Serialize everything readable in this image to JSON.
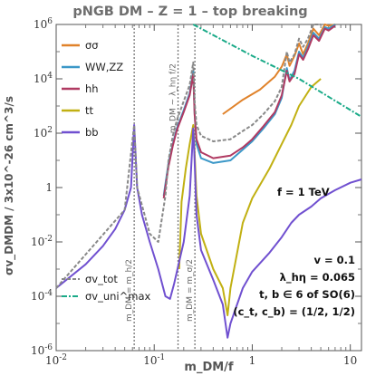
{
  "chart_data": {
    "type": "line",
    "title": "pNGB DM  –  Z = 1  –  top breaking",
    "xlabel": "m_DM/f",
    "ylabel": "σv_DMDM / 3x10^-26 cm^3/s",
    "xscale": "log",
    "yscale": "log",
    "xlim": [
      0.01,
      13
    ],
    "ylim": [
      1e-06,
      1000000
    ],
    "x_ticks": [
      "10^-2",
      "10^-1",
      "1",
      "10"
    ],
    "y_ticks": [
      "10^-6",
      "10^-4",
      "10^-2",
      "1",
      "10^2",
      "10^4",
      "10^6"
    ],
    "legend": {
      "position": "upper-left",
      "entries": [
        {
          "label": "σσ",
          "color": "#e0822a"
        },
        {
          "label": "WW,ZZ",
          "color": "#3c98c8"
        },
        {
          "label": "hh",
          "color": "#b03a62"
        },
        {
          "label": "tt",
          "color": "#c1b012"
        },
        {
          "label": "bb",
          "color": "#7050d0"
        }
      ]
    },
    "legend2": {
      "position": "lower-left",
      "entries": [
        {
          "label": "σv_tot",
          "color": "#888888",
          "style": "dashed"
        },
        {
          "label": "σv_uni^max",
          "color": "#1aaa88",
          "style": "dash-dot"
        }
      ]
    },
    "vertical_lines": [
      {
        "x": 0.0625,
        "label": "m_DM = m_h/2"
      },
      {
        "x": 0.175,
        "label": "m_DM ~ λ_hη f/2"
      },
      {
        "x": 0.26,
        "label": "m_DM = m_σ/2"
      }
    ],
    "annotations": {
      "f_label": "f = 1 TeV",
      "params": [
        "v = 0.1",
        "λ_hη = 0.065",
        "t, b ∈ 6 of SO(6)",
        "(c_t, c_b) = (1/2, 1/2)"
      ]
    },
    "series": [
      {
        "name": "σσ",
        "color": "#e0822a",
        "points": [
          [
            0.5,
            500
          ],
          [
            0.8,
            1700
          ],
          [
            1.2,
            4000
          ],
          [
            1.7,
            12000
          ],
          [
            2.0,
            28000
          ],
          [
            2.25,
            80000
          ],
          [
            2.4,
            30000
          ],
          [
            2.7,
            70000
          ],
          [
            3.0,
            200000
          ],
          [
            3.3,
            80000
          ],
          [
            3.7,
            200000
          ],
          [
            4.2,
            700000
          ],
          [
            4.8,
            400000
          ],
          [
            5.5,
            1000000
          ],
          [
            6,
            900000
          ],
          [
            7,
            1000000
          ]
        ]
      },
      {
        "name": "WW,ZZ",
        "color": "#3c98c8",
        "points": [
          [
            0.125,
            0.5
          ],
          [
            0.14,
            8
          ],
          [
            0.155,
            40
          ],
          [
            0.17,
            150
          ],
          [
            0.2,
            700
          ],
          [
            0.23,
            3000
          ],
          [
            0.25,
            20000
          ],
          [
            0.258,
            600
          ],
          [
            0.27,
            40
          ],
          [
            0.3,
            12
          ],
          [
            0.4,
            8
          ],
          [
            0.6,
            10
          ],
          [
            0.8,
            25
          ],
          [
            1,
            50
          ],
          [
            1.3,
            150
          ],
          [
            1.7,
            500
          ],
          [
            2.0,
            2000
          ],
          [
            2.25,
            25000
          ],
          [
            2.4,
            9000
          ],
          [
            2.7,
            20000
          ],
          [
            3.0,
            100000
          ],
          [
            3.3,
            60000
          ],
          [
            3.7,
            150000
          ],
          [
            4.2,
            500000
          ],
          [
            4.8,
            300000
          ],
          [
            5.5,
            800000
          ],
          [
            6,
            700000
          ],
          [
            7,
            1000000
          ]
        ]
      },
      {
        "name": "hh",
        "color": "#b03a62",
        "points": [
          [
            0.125,
            0.4
          ],
          [
            0.14,
            6
          ],
          [
            0.155,
            35
          ],
          [
            0.17,
            130
          ],
          [
            0.2,
            600
          ],
          [
            0.23,
            2500
          ],
          [
            0.25,
            15000
          ],
          [
            0.258,
            500
          ],
          [
            0.27,
            60
          ],
          [
            0.3,
            20
          ],
          [
            0.4,
            12
          ],
          [
            0.6,
            15
          ],
          [
            0.8,
            30
          ],
          [
            1,
            60
          ],
          [
            1.3,
            180
          ],
          [
            1.7,
            600
          ],
          [
            2.0,
            2500
          ],
          [
            2.25,
            20000
          ],
          [
            2.4,
            8000
          ],
          [
            2.7,
            15000
          ],
          [
            3.0,
            80000
          ],
          [
            3.3,
            50000
          ],
          [
            3.7,
            120000
          ],
          [
            4.2,
            400000
          ],
          [
            4.8,
            250000
          ],
          [
            5.5,
            700000
          ],
          [
            6,
            600000
          ],
          [
            7,
            900000
          ]
        ]
      },
      {
        "name": "tt",
        "color": "#c1b012",
        "points": [
          [
            0.18,
            0.001
          ],
          [
            0.19,
            0.3
          ],
          [
            0.21,
            5
          ],
          [
            0.23,
            40
          ],
          [
            0.25,
            200
          ],
          [
            0.258,
            20
          ],
          [
            0.27,
            0.5
          ],
          [
            0.3,
            0.02
          ],
          [
            0.4,
            0.001
          ],
          [
            0.5,
            0.0002
          ],
          [
            0.56,
            2e-05
          ],
          [
            0.6,
            0.0002
          ],
          [
            0.8,
            0.05
          ],
          [
            1,
            0.4
          ],
          [
            1.5,
            5
          ],
          [
            2,
            40
          ],
          [
            2.5,
            200
          ],
          [
            3,
            1000
          ],
          [
            4,
            5000
          ],
          [
            5,
            10000
          ]
        ]
      },
      {
        "name": "bb",
        "color": "#7050d0",
        "points": [
          [
            0.01,
            0.0002
          ],
          [
            0.02,
            0.0015
          ],
          [
            0.03,
            0.007
          ],
          [
            0.04,
            0.03
          ],
          [
            0.05,
            0.15
          ],
          [
            0.058,
            1
          ],
          [
            0.0625,
            200
          ],
          [
            0.067,
            1
          ],
          [
            0.075,
            0.1
          ],
          [
            0.09,
            0.01
          ],
          [
            0.11,
            0.001
          ],
          [
            0.13,
            0.0001
          ],
          [
            0.145,
            8e-05
          ],
          [
            0.16,
            0.0003
          ],
          [
            0.2,
            0.01
          ],
          [
            0.23,
            0.5
          ],
          [
            0.25,
            150
          ],
          [
            0.258,
            10
          ],
          [
            0.27,
            0.1
          ],
          [
            0.3,
            0.005
          ],
          [
            0.4,
            0.0004
          ],
          [
            0.5,
            5e-05
          ],
          [
            0.56,
            3e-06
          ],
          [
            0.6,
            1e-05
          ],
          [
            0.8,
            0.0002
          ],
          [
            1,
            0.0008
          ],
          [
            1.5,
            0.004
          ],
          [
            2,
            0.015
          ],
          [
            2.5,
            0.05
          ],
          [
            3,
            0.1
          ],
          [
            4,
            0.2
          ],
          [
            5,
            0.4
          ],
          [
            7,
            0.8
          ],
          [
            10,
            1.5
          ],
          [
            13,
            2
          ]
        ]
      },
      {
        "name": "σv_tot",
        "color": "#888888",
        "points": [
          [
            0.01,
            0.0002
          ],
          [
            0.05,
            0.15
          ],
          [
            0.0625,
            200
          ],
          [
            0.067,
            1
          ],
          [
            0.09,
            0.02
          ],
          [
            0.11,
            0.01
          ],
          [
            0.13,
            0.5
          ],
          [
            0.14,
            10
          ],
          [
            0.155,
            80
          ],
          [
            0.17,
            300
          ],
          [
            0.2,
            1500
          ],
          [
            0.23,
            6000
          ],
          [
            0.25,
            40000
          ],
          [
            0.258,
            1500
          ],
          [
            0.27,
            200
          ],
          [
            0.3,
            80
          ],
          [
            0.4,
            50
          ],
          [
            0.6,
            60
          ],
          [
            0.8,
            120
          ],
          [
            1,
            200
          ],
          [
            1.3,
            500
          ],
          [
            1.7,
            1500
          ],
          [
            2.0,
            5000
          ],
          [
            2.25,
            100000
          ],
          [
            2.4,
            40000
          ],
          [
            2.7,
            80000
          ],
          [
            3.0,
            300000
          ],
          [
            3.3,
            150000
          ],
          [
            3.7,
            300000
          ],
          [
            4.2,
            1000000
          ],
          [
            5,
            1000000
          ]
        ]
      },
      {
        "name": "σv_uni^max",
        "color": "#1aaa88",
        "points": [
          [
            0.25,
            1000000
          ],
          [
            1,
            70000
          ],
          [
            3,
            10000
          ],
          [
            13,
            400
          ]
        ]
      }
    ]
  }
}
